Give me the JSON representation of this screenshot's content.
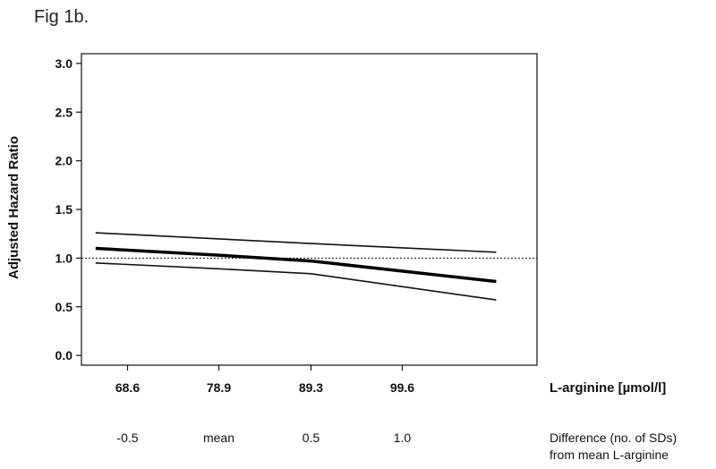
{
  "figure": {
    "caption": "Fig 1b."
  },
  "chart_data": {
    "type": "line",
    "ylabel": "Adjusted Hazard Ratio",
    "xlabel": "L-arginine [µmol/l]",
    "secondary_xlabel_line1": "Difference (no. of SDs)",
    "secondary_xlabel_line2": "from mean L-arginine",
    "ylim": [
      -0.1,
      3.1
    ],
    "yticks": [
      0.0,
      0.5,
      1.0,
      1.5,
      2.0,
      2.5,
      3.0
    ],
    "ytick_labels": [
      "0.0",
      "0.5",
      "1.0",
      "1.5",
      "2.0",
      "2.5",
      "3.0"
    ],
    "xlim": [
      63.4,
      114.8
    ],
    "xticks": [
      68.6,
      78.9,
      89.3,
      99.6
    ],
    "xtick_labels": [
      "68.6",
      "78.9",
      "89.3",
      "99.6"
    ],
    "secondary_xtick_labels": [
      "-0.5",
      "mean",
      "0.5",
      "1.0"
    ],
    "reference_line": {
      "y": 1.0,
      "style": "dotted"
    },
    "grid": false,
    "series": [
      {
        "role": "estimate",
        "stroke_width": 3.5,
        "color": "#000000",
        "x": [
          65.0,
          78.9,
          89.3,
          110.2
        ],
        "y": [
          1.1,
          1.03,
          0.97,
          0.76
        ]
      },
      {
        "role": "upper",
        "stroke_width": 1.6,
        "color": "#111111",
        "x": [
          65.0,
          89.3,
          110.2
        ],
        "y": [
          1.26,
          1.15,
          1.06
        ]
      },
      {
        "role": "lower",
        "stroke_width": 1.6,
        "color": "#111111",
        "x": [
          65.0,
          78.9,
          89.3,
          110.2
        ],
        "y": [
          0.95,
          0.89,
          0.84,
          0.57
        ]
      }
    ]
  }
}
